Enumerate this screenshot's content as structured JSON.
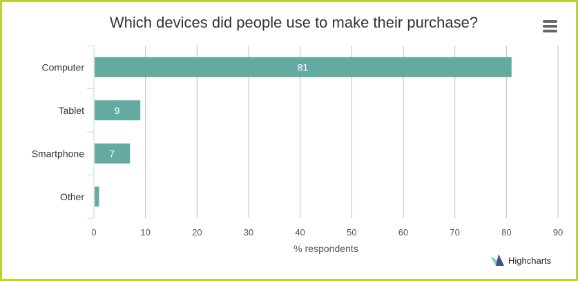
{
  "title": "Which devices did people use to make their purchase?",
  "menu_icon": "hamburger-menu-icon",
  "credits": {
    "label": "Highcharts",
    "icon": "highcharts-logo-icon"
  },
  "colors": {
    "bar": "#63aba1",
    "grid": "#c0c0c0",
    "frame": "#bfd22f"
  },
  "chart_data": {
    "type": "bar",
    "orientation": "horizontal",
    "categories": [
      "Computer",
      "Tablet",
      "Smartphone",
      "Other"
    ],
    "values": [
      81,
      9,
      7,
      1
    ],
    "data_labels": [
      "81",
      "9",
      "7",
      ""
    ],
    "title": "Which devices did people use to make their purchase?",
    "xlabel": "",
    "ylabel": "% respondents",
    "ylim": [
      0,
      90
    ],
    "ticks": [
      0,
      10,
      20,
      30,
      40,
      50,
      60,
      70,
      80,
      90
    ],
    "grid": true,
    "legend": false
  }
}
